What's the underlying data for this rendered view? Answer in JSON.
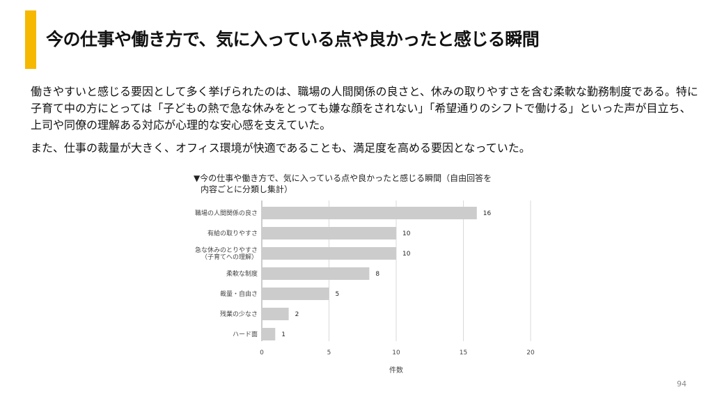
{
  "slide": {
    "title": "今の仕事や働き方で、気に入っている点や良かったと感じる瞬間",
    "paragraphs": [
      "働きやすいと感じる要因として多く挙げられたのは、職場の人間関係の良さと、休みの取りやすさを含む柔軟な勤務制度である。特に子育て中の方にとっては「子どもの熱で急な休みをとっても嫌な顔をされない」「希望通りのシフトで働ける」といった声が目立ち、上司や同僚の理解ある対応が心理的な安心感を支えていた。",
      "また、仕事の裁量が大きく、オフィス環境が快適であることも、満足度を高める要因となっていた。"
    ],
    "page_number": "94",
    "accent_color": "#f6b800"
  },
  "chart_data": {
    "type": "bar",
    "orientation": "horizontal",
    "caption_lines": [
      "▼今の仕事や働き方で、気に入っている点や良かったと感じる瞬間（自由回答を",
      "内容ごとに分類し集計）"
    ],
    "categories": [
      [
        "職場の人間関係の良さ"
      ],
      [
        "有給の取りやすさ"
      ],
      [
        "急な休みのとりやすさ",
        "（子育てへの理解）"
      ],
      [
        "柔軟な制度"
      ],
      [
        "裁量・自由さ"
      ],
      [
        "残業の少なさ"
      ],
      [
        "ハード面"
      ]
    ],
    "values": [
      16,
      10,
      10,
      8,
      5,
      2,
      1
    ],
    "xlim": [
      0,
      20
    ],
    "xticks": [
      0,
      5,
      10,
      15,
      20
    ],
    "xlabel": "件数",
    "bar_color": "#cccccc",
    "grid": true
  }
}
